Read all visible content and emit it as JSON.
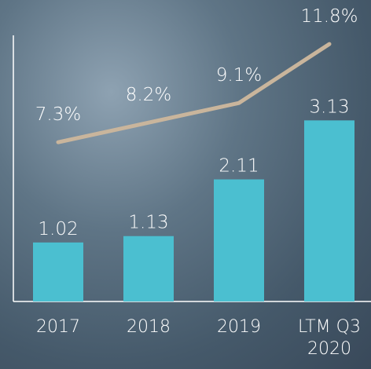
{
  "chart_data": {
    "type": "bar_line",
    "categories": [
      "2017",
      "2018",
      "2019",
      "LTM Q3 2020"
    ],
    "series": [
      {
        "type": "bar",
        "color": "#4bbfd0",
        "values": [
          1.02,
          1.13,
          2.11,
          3.13
        ]
      },
      {
        "type": "line",
        "axis": "y2",
        "color": "#c9b59c",
        "values": [
          7.3,
          8.2,
          9.1,
          11.8
        ],
        "value_labels": [
          "7.3%",
          "8.2%",
          "9.1%",
          "11.8%"
        ]
      }
    ],
    "ylim": [
      0,
      4.6
    ],
    "y2lim": [
      0,
      12.2
    ]
  }
}
